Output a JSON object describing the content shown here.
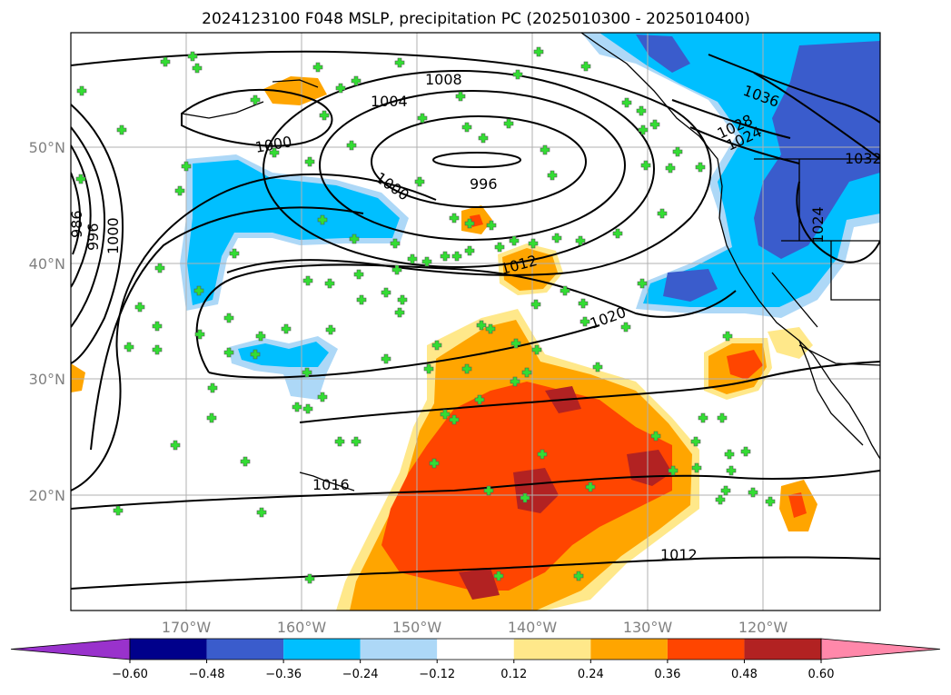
{
  "title": "2024123100 F048 MSLP, precipitation PC (2025010300 - 2025010400)",
  "map": {
    "lat_labels": [
      "50°N",
      "40°N",
      "30°N",
      "20°N"
    ],
    "lon_labels": [
      "170°W",
      "160°W",
      "150°W",
      "140°W",
      "130°W",
      "120°W"
    ],
    "isobar_labels": [
      {
        "text": "1008"
      },
      {
        "text": "1004"
      },
      {
        "text": "1000"
      },
      {
        "text": "996"
      },
      {
        "text": "1000"
      },
      {
        "text": "1012"
      },
      {
        "text": "1020"
      },
      {
        "text": "1016"
      },
      {
        "text": "1012"
      },
      {
        "text": "1036"
      },
      {
        "text": "1028"
      },
      {
        "text": "1024"
      },
      {
        "text": "1032"
      },
      {
        "text": "1024"
      },
      {
        "text": "986"
      },
      {
        "text": "996"
      },
      {
        "text": "1000"
      }
    ]
  },
  "colorbar": {
    "ticks": [
      "−0.60",
      "−0.48",
      "−0.36",
      "−0.24",
      "−0.12",
      "0.12",
      "0.24",
      "0.36",
      "0.48",
      "0.60"
    ],
    "colors": [
      "#9932cc",
      "#00008b",
      "#3a5ccc",
      "#00bfff",
      "#add8f7",
      "#ffffff",
      "#ffe88a",
      "#ffa500",
      "#ff4500",
      "#b22222",
      "#ff88aa"
    ]
  },
  "palette": {
    "dark_blue": "#3a5ccc",
    "blue": "#00bfff",
    "light_blue": "#add8f7",
    "light_yellow": "#ffe88a",
    "orange": "#ffa500",
    "red_orange": "#ff4500",
    "dark_red": "#b22222",
    "marker": "#33dd33"
  }
}
